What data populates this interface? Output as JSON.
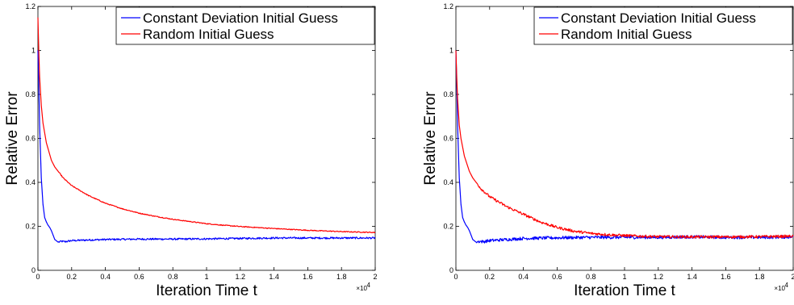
{
  "chart_data": [
    {
      "type": "line",
      "xlabel": "Iteration Time t",
      "ylabel": "Relative Error",
      "x_multiplier": "×10",
      "x_multiplier_exp": "4",
      "xlim": [
        0,
        2
      ],
      "ylim": [
        0,
        1.2
      ],
      "xticks": [
        "0",
        "0.2",
        "0.4",
        "0.6",
        "0.8",
        "1",
        "1.2",
        "1.4",
        "1.6",
        "1.8",
        "2"
      ],
      "yticks": [
        "0",
        "0.2",
        "0.4",
        "0.6",
        "0.8",
        "1",
        "1.2"
      ],
      "grid": false,
      "legend_position": "top-right",
      "series": [
        {
          "name": "Constant Deviation Initial Guess",
          "color": "#0000ff",
          "x": [
            0,
            0.005,
            0.01,
            0.02,
            0.03,
            0.04,
            0.05,
            0.06,
            0.07,
            0.08,
            0.09,
            0.1,
            0.12,
            0.14,
            0.16,
            0.2,
            0.3,
            0.4,
            0.6,
            0.8,
            1.0,
            1.2,
            1.4,
            1.6,
            1.8,
            2.0
          ],
          "y": [
            1.0,
            0.85,
            0.66,
            0.42,
            0.3,
            0.24,
            0.22,
            0.205,
            0.195,
            0.18,
            0.16,
            0.14,
            0.128,
            0.132,
            0.13,
            0.135,
            0.138,
            0.14,
            0.142,
            0.142,
            0.143,
            0.145,
            0.147,
            0.147,
            0.147,
            0.147
          ],
          "noise": 0.004
        },
        {
          "name": "Random Initial Guess",
          "color": "#ff0000",
          "x": [
            0,
            0.005,
            0.01,
            0.02,
            0.03,
            0.05,
            0.08,
            0.1,
            0.15,
            0.2,
            0.3,
            0.4,
            0.5,
            0.6,
            0.7,
            0.8,
            0.9,
            1.0,
            1.1,
            1.2,
            1.4,
            1.6,
            1.8,
            2.0
          ],
          "y": [
            1.15,
            1.0,
            0.88,
            0.75,
            0.67,
            0.58,
            0.5,
            0.47,
            0.42,
            0.385,
            0.34,
            0.305,
            0.28,
            0.26,
            0.245,
            0.232,
            0.222,
            0.212,
            0.205,
            0.199,
            0.19,
            0.182,
            0.176,
            0.172
          ],
          "noise": 0.002
        }
      ]
    },
    {
      "type": "line",
      "xlabel": "Iteration Time t",
      "ylabel": "Relative Error",
      "x_multiplier": "×10",
      "x_multiplier_exp": "4",
      "xlim": [
        0,
        2
      ],
      "ylim": [
        0,
        1.2
      ],
      "xticks": [
        "0",
        "0.2",
        "0.4",
        "0.6",
        "0.8",
        "1",
        "1.2",
        "1.4",
        "1.6",
        "1.8",
        "2"
      ],
      "yticks": [
        "0",
        "0.2",
        "0.4",
        "0.6",
        "0.8",
        "1",
        "1.2"
      ],
      "grid": false,
      "legend_position": "top-right",
      "series": [
        {
          "name": "Constant Deviation Initial Guess",
          "color": "#0000ff",
          "x": [
            0,
            0.005,
            0.01,
            0.02,
            0.03,
            0.04,
            0.05,
            0.06,
            0.07,
            0.08,
            0.09,
            0.1,
            0.12,
            0.14,
            0.16,
            0.2,
            0.3,
            0.4,
            0.6,
            0.8,
            1.0,
            1.2,
            1.4,
            1.6,
            1.8,
            2.0
          ],
          "y": [
            1.0,
            0.85,
            0.66,
            0.42,
            0.3,
            0.24,
            0.22,
            0.205,
            0.195,
            0.18,
            0.16,
            0.14,
            0.128,
            0.132,
            0.13,
            0.135,
            0.14,
            0.145,
            0.148,
            0.15,
            0.15,
            0.15,
            0.152,
            0.15,
            0.15,
            0.152
          ],
          "noise": 0.007
        },
        {
          "name": "Random Initial Guess",
          "color": "#ff0000",
          "x": [
            0,
            0.005,
            0.01,
            0.02,
            0.03,
            0.05,
            0.08,
            0.1,
            0.15,
            0.2,
            0.3,
            0.4,
            0.5,
            0.6,
            0.7,
            0.8,
            0.9,
            1.0,
            1.1,
            1.2,
            1.4,
            1.6,
            1.8,
            2.0
          ],
          "y": [
            1.0,
            0.88,
            0.78,
            0.66,
            0.6,
            0.52,
            0.45,
            0.42,
            0.37,
            0.335,
            0.29,
            0.255,
            0.22,
            0.195,
            0.178,
            0.168,
            0.162,
            0.158,
            0.155,
            0.153,
            0.152,
            0.152,
            0.153,
            0.155
          ],
          "noise": 0.006
        }
      ]
    }
  ]
}
